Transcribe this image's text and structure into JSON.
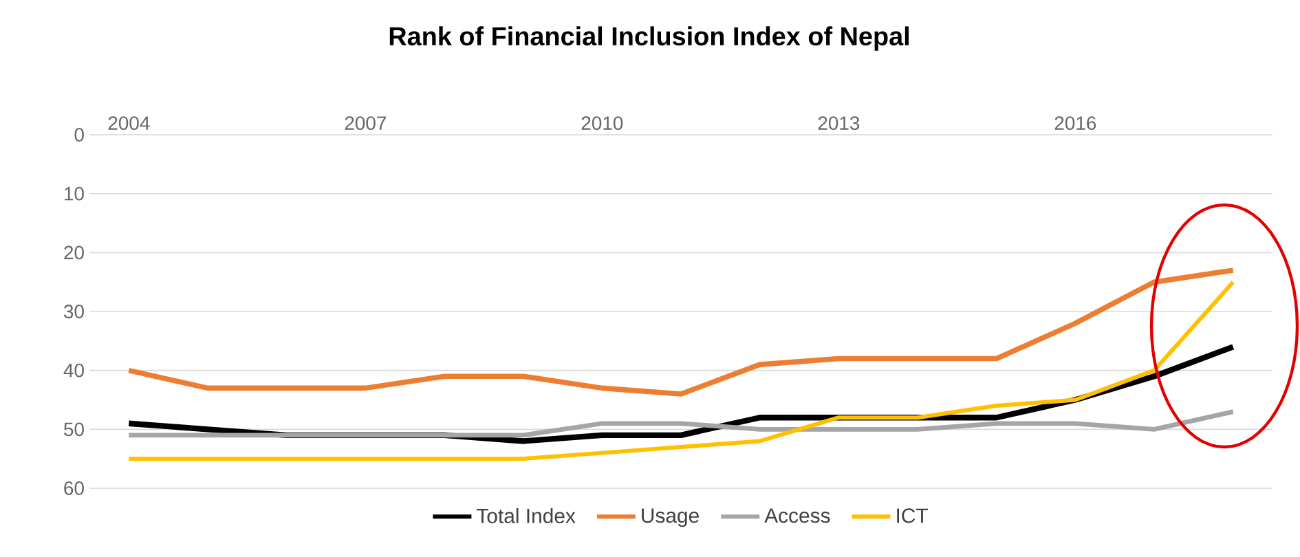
{
  "chart_data": {
    "type": "line",
    "title": "Rank of Financial Inclusion Index of Nepal",
    "x": [
      2004,
      2005,
      2006,
      2007,
      2008,
      2009,
      2010,
      2011,
      2012,
      2013,
      2014,
      2015,
      2016,
      2017,
      2018
    ],
    "series": [
      {
        "name": "Total Index",
        "color": "#000000",
        "values": [
          49,
          50,
          51,
          51,
          51,
          52,
          51,
          51,
          48,
          48,
          48,
          48,
          45,
          41,
          36
        ]
      },
      {
        "name": "Usage",
        "color": "#ed7d31",
        "values": [
          40,
          43,
          43,
          43,
          41,
          41,
          43,
          44,
          39,
          38,
          38,
          38,
          32,
          25,
          23
        ]
      },
      {
        "name": "Access",
        "color": "#a5a5a5",
        "values": [
          51,
          51,
          51,
          51,
          51,
          51,
          49,
          49,
          50,
          50,
          50,
          49,
          49,
          50,
          47
        ]
      },
      {
        "name": "ICT",
        "color": "#ffc000",
        "values": [
          55,
          55,
          55,
          55,
          55,
          55,
          54,
          53,
          52,
          48,
          48,
          46,
          45,
          40,
          25
        ]
      }
    ],
    "xlim": [
      2003.5,
      2018.5
    ],
    "xticks": [
      2004,
      2007,
      2010,
      2013,
      2016
    ],
    "ylim": [
      60,
      0
    ],
    "yticks": [
      0,
      10,
      20,
      30,
      40,
      50,
      60
    ],
    "grid": "y",
    "legend": "bottom",
    "line_style": "solid"
  }
}
